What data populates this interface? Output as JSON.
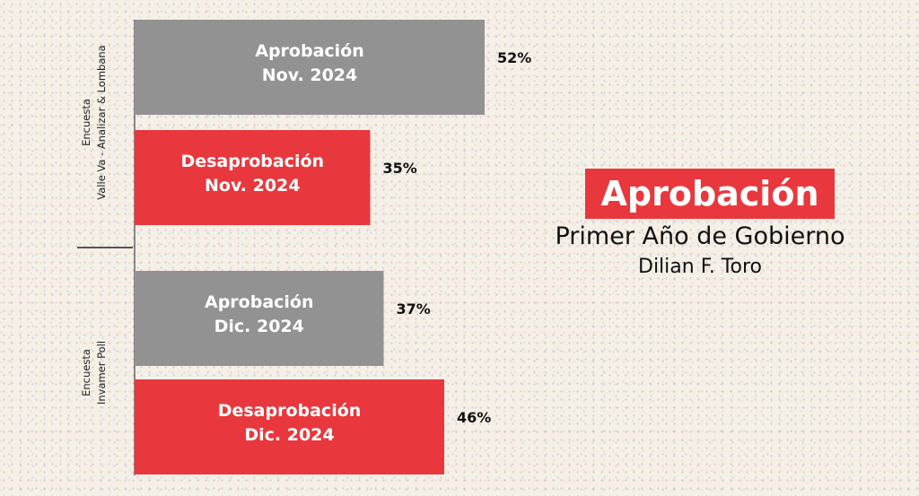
{
  "chart_data": {
    "type": "bar",
    "orientation": "horizontal",
    "xlim": [
      0,
      100
    ],
    "colors": {
      "approval": "#929292",
      "disapproval": "#e8383d"
    },
    "groups": [
      {
        "label_lines": [
          "Encuesta",
          "Valle Va - Analizar & Lombana"
        ],
        "bars": [
          {
            "label_lines": [
              "Aprobación",
              "Nov. 2024"
            ],
            "value": 52,
            "value_label": "52%",
            "kind": "approval"
          },
          {
            "label_lines": [
              "Desaprobación",
              "Nov. 2024"
            ],
            "value": 35,
            "value_label": "35%",
            "kind": "disapproval"
          }
        ]
      },
      {
        "label_lines": [
          "Encuesta",
          "Invamer Poll"
        ],
        "bars": [
          {
            "label_lines": [
              "Aprobación",
              "Dic. 2024"
            ],
            "value": 37,
            "value_label": "37%",
            "kind": "approval"
          },
          {
            "label_lines": [
              "Desaprobación",
              "Dic. 2024"
            ],
            "value": 46,
            "value_label": "46%",
            "kind": "disapproval"
          }
        ]
      }
    ]
  },
  "title": "Aprobación",
  "subtitle": "Primer Año de Gobierno",
  "byline": "Dilian F. Toro"
}
